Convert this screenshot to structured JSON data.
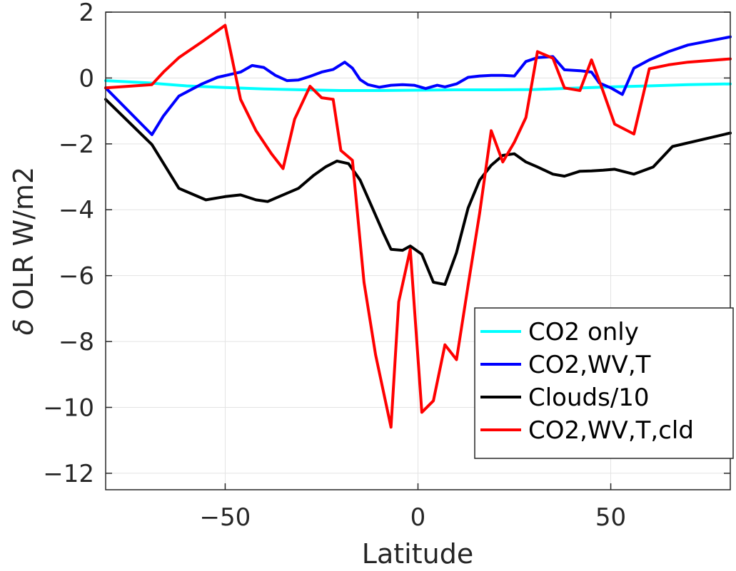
{
  "chart_data": {
    "type": "line",
    "xlabel": "Latitude",
    "ylabel_symbol": "δ",
    "ylabel_rest": " OLR W/m2",
    "xlim": [
      -81,
      81
    ],
    "ylim": [
      -12.5,
      2
    ],
    "x_ticks": [
      -50,
      0,
      50
    ],
    "x_tick_labels": [
      "−50",
      "0",
      "50"
    ],
    "y_ticks": [
      2,
      0,
      -2,
      -4,
      -6,
      -8,
      -10,
      -12
    ],
    "y_tick_labels": [
      "2",
      "0",
      "−2",
      "−4",
      "−6",
      "−8",
      "−10",
      "−12"
    ],
    "grid": true,
    "legend_position": "lower-right",
    "series": [
      {
        "name": "CO2 only",
        "color": "#00ffff",
        "x": [
          -81,
          -70,
          -60,
          -50,
          -40,
          -30,
          -20,
          -10,
          0,
          10,
          20,
          30,
          40,
          50,
          60,
          70,
          81
        ],
        "y": [
          -0.08,
          -0.15,
          -0.24,
          -0.29,
          -0.33,
          -0.36,
          -0.38,
          -0.38,
          -0.37,
          -0.36,
          -0.36,
          -0.35,
          -0.31,
          -0.27,
          -0.24,
          -0.2,
          -0.18
        ]
      },
      {
        "name": "CO2,WV,T",
        "color": "#0000ff",
        "x": [
          -81,
          -69,
          -66,
          -62,
          -56,
          -52,
          -49,
          -46,
          -43,
          -40,
          -37,
          -34,
          -31,
          -28,
          -25,
          -22,
          -19,
          -17,
          -15,
          -13,
          -10,
          -7,
          -4,
          -1,
          2,
          5,
          7,
          10,
          13,
          16,
          19,
          22,
          25,
          28,
          31,
          35,
          38,
          42,
          45,
          47,
          50,
          53,
          56,
          60,
          65,
          70,
          81
        ],
        "y": [
          -0.3,
          -1.72,
          -1.15,
          -0.55,
          -0.18,
          0.02,
          0.1,
          0.18,
          0.38,
          0.32,
          0.08,
          -0.08,
          -0.06,
          0.05,
          0.18,
          0.26,
          0.48,
          0.3,
          -0.05,
          -0.2,
          -0.28,
          -0.22,
          -0.2,
          -0.22,
          -0.32,
          -0.22,
          -0.27,
          -0.18,
          0.02,
          0.06,
          0.08,
          0.08,
          0.06,
          0.5,
          0.62,
          0.65,
          0.25,
          0.22,
          0.18,
          -0.15,
          -0.3,
          -0.5,
          0.3,
          0.55,
          0.8,
          1.0,
          1.25
        ]
      },
      {
        "name": "Clouds/10",
        "color": "#000000",
        "x": [
          -81,
          -69,
          -62,
          -55,
          -50,
          -46,
          -42,
          -39,
          -35,
          -31,
          -27,
          -24,
          -21,
          -18,
          -15,
          -12,
          -9,
          -7,
          -4,
          -2,
          1,
          4,
          7,
          10,
          13,
          16,
          19,
          22,
          25,
          28,
          31,
          35,
          38,
          42,
          45,
          48,
          51,
          56,
          61,
          66,
          81
        ],
        "y": [
          -0.65,
          -2.02,
          -3.35,
          -3.7,
          -3.6,
          -3.55,
          -3.7,
          -3.75,
          -3.55,
          -3.35,
          -2.95,
          -2.7,
          -2.52,
          -2.6,
          -3.1,
          -3.9,
          -4.7,
          -5.2,
          -5.23,
          -5.1,
          -5.35,
          -6.2,
          -6.27,
          -5.3,
          -3.95,
          -3.1,
          -2.65,
          -2.35,
          -2.3,
          -2.55,
          -2.7,
          -2.92,
          -2.98,
          -2.83,
          -2.82,
          -2.8,
          -2.77,
          -2.92,
          -2.7,
          -2.08,
          -1.67
        ]
      },
      {
        "name": "CO2,WV,T,cld",
        "color": "#ff0000",
        "x": [
          -81,
          -69,
          -66,
          -62,
          -56,
          -50,
          -46,
          -42,
          -38,
          -35,
          -32,
          -28,
          -25,
          -22,
          -20,
          -17,
          -14,
          -11,
          -7,
          -5,
          -2,
          1,
          4,
          7,
          10,
          13,
          16,
          19,
          22,
          25,
          28,
          31,
          35,
          38,
          42,
          45,
          48,
          51,
          56,
          60,
          65,
          70,
          81
        ],
        "y": [
          -0.3,
          -0.2,
          0.18,
          0.62,
          1.1,
          1.6,
          -0.65,
          -1.6,
          -2.3,
          -2.75,
          -1.25,
          -0.25,
          -0.6,
          -0.65,
          -2.2,
          -2.5,
          -6.2,
          -8.4,
          -10.6,
          -6.8,
          -5.2,
          -10.15,
          -9.8,
          -8.1,
          -8.55,
          -6.3,
          -4.1,
          -1.6,
          -2.55,
          -1.95,
          -1.2,
          0.8,
          0.6,
          -0.3,
          -0.38,
          0.55,
          -0.4,
          -1.4,
          -1.7,
          0.28,
          0.4,
          0.48,
          0.58
        ]
      }
    ]
  }
}
